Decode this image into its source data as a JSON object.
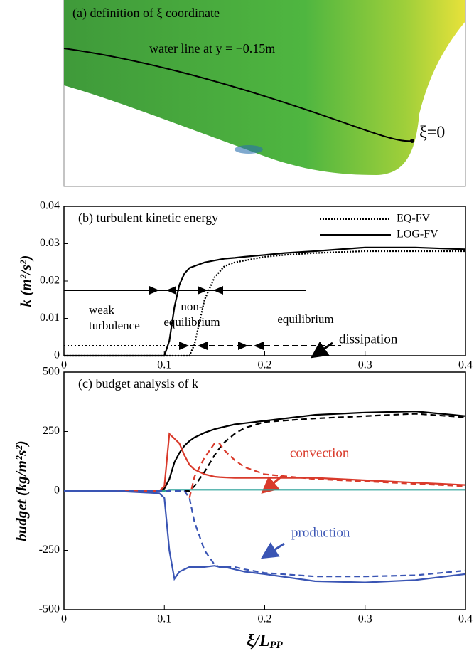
{
  "panel_a": {
    "title": "(a) definition of ξ coordinate",
    "water_line_label": "water line at y = −0.15m",
    "origin_label": "ξ=0"
  },
  "chart_data": [
    {
      "type": "line",
      "title": "(b) turbulent kinetic energy",
      "ylabel": "k (m²/s²)",
      "x": [
        0,
        0.05,
        0.1,
        0.105,
        0.11,
        0.115,
        0.12,
        0.125,
        0.13,
        0.135,
        0.14,
        0.15,
        0.16,
        0.17,
        0.18,
        0.2,
        0.22,
        0.25,
        0.3,
        0.35,
        0.4
      ],
      "series": [
        {
          "name": "EQ-FV",
          "color": "#000000",
          "style": "dotted",
          "values": [
            0,
            0,
            0,
            0,
            0,
            0,
            0,
            0,
            0.003,
            0.009,
            0.015,
            0.021,
            0.024,
            0.025,
            0.0255,
            0.0265,
            0.027,
            0.0275,
            0.028,
            0.028,
            0.028
          ]
        },
        {
          "name": "LOG-FV",
          "color": "#000000",
          "style": "solid",
          "values": [
            0,
            0,
            0,
            0.004,
            0.013,
            0.019,
            0.022,
            0.0235,
            0.024,
            0.0245,
            0.025,
            0.0255,
            0.026,
            0.0262,
            0.0265,
            0.027,
            0.0275,
            0.028,
            0.029,
            0.029,
            0.0285
          ]
        }
      ],
      "xlim": [
        0,
        0.4
      ],
      "xticks": [
        0,
        0.1,
        0.2,
        0.3,
        0.4
      ],
      "ylim": [
        0,
        0.04
      ],
      "yticks": [
        0,
        0.01,
        0.02,
        0.03,
        0.04
      ],
      "legend": "upper right",
      "annotations": [
        [
          "weak",
          "turbulence"
        ],
        [
          "non-",
          "equilibrium"
        ],
        [
          "equilibrium"
        ]
      ]
    },
    {
      "type": "line",
      "title": "(c) budget analysis of k",
      "ylabel": "budget (kg/m²s²)",
      "xlabel": {
        "text": "ξ/L",
        "sub": "PP"
      },
      "x": [
        0,
        0.05,
        0.095,
        0.1,
        0.105,
        0.11,
        0.115,
        0.12,
        0.125,
        0.13,
        0.14,
        0.15,
        0.155,
        0.16,
        0.17,
        0.18,
        0.2,
        0.25,
        0.3,
        0.35,
        0.4
      ],
      "series": [
        {
          "color": "#2aa198",
          "style": "solid",
          "values": [
            0,
            0,
            0,
            0,
            5,
            5,
            5,
            5,
            5,
            5,
            5,
            5,
            5,
            5,
            5,
            5,
            5,
            5,
            5,
            5,
            5
          ]
        },
        {
          "color": "#000000",
          "style": "dashed",
          "values": [
            0,
            0,
            0,
            0,
            0,
            0,
            0,
            0,
            0,
            20,
            80,
            150,
            180,
            205,
            240,
            265,
            290,
            305,
            315,
            325,
            310
          ]
        },
        {
          "color": "#000000",
          "style": "solid",
          "values": [
            0,
            0,
            0,
            10,
            50,
            120,
            160,
            190,
            210,
            225,
            245,
            260,
            265,
            270,
            280,
            285,
            295,
            320,
            330,
            335,
            315
          ]
        },
        {
          "color": "#d93a2b",
          "style": "dashed",
          "values": [
            0,
            0,
            0,
            0,
            0,
            0,
            0,
            0,
            -30,
            60,
            140,
            200,
            200,
            170,
            130,
            100,
            70,
            50,
            40,
            30,
            20
          ]
        },
        {
          "color": "#d93a2b",
          "style": "solid",
          "values": [
            0,
            0,
            0,
            20,
            240,
            220,
            200,
            150,
            110,
            90,
            70,
            60,
            58,
            57,
            55,
            55,
            55,
            55,
            45,
            35,
            25
          ]
        },
        {
          "color": "#3a55b4",
          "style": "dashed",
          "values": [
            0,
            0,
            0,
            0,
            0,
            0,
            0,
            0,
            -30,
            -130,
            -250,
            -310,
            -320,
            -320,
            -320,
            -330,
            -345,
            -360,
            -360,
            -355,
            -335
          ]
        },
        {
          "color": "#3a55b4",
          "style": "solid",
          "values": [
            0,
            0,
            -10,
            -30,
            -250,
            -370,
            -340,
            -330,
            -320,
            -320,
            -320,
            -315,
            -320,
            -320,
            -330,
            -340,
            -350,
            -380,
            -385,
            -375,
            -350
          ]
        }
      ],
      "xlim": [
        0,
        0.4
      ],
      "xticks": [
        0,
        0.1,
        0.2,
        0.3,
        0.4
      ],
      "ylim": [
        -500,
        500
      ],
      "yticks": [
        -500,
        -250,
        0,
        250,
        500
      ],
      "annotations": [
        {
          "text": "dissipation",
          "color": "#000000"
        },
        {
          "text": "convection",
          "color": "#d93a2b"
        },
        {
          "text": "production",
          "color": "#3a55b4"
        }
      ]
    }
  ]
}
